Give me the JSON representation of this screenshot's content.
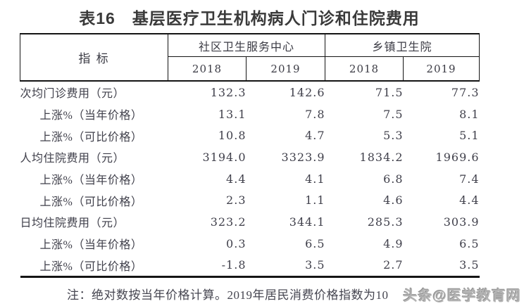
{
  "title": "表16　基层医疗卫生机构病人门诊和住院费用",
  "table": {
    "indicator_header": "指  标",
    "group_headers": [
      {
        "label": "社区卫生服务中心",
        "years": [
          "2018",
          "2019"
        ]
      },
      {
        "label": "乡镇卫生院",
        "years": [
          "2018",
          "2019"
        ]
      }
    ],
    "rows": [
      {
        "label": "次均门诊费用（元）",
        "indent": false,
        "values": [
          "132.3",
          "142.6",
          "71.5",
          "77.3"
        ]
      },
      {
        "label": "上涨%（当年价格）",
        "indent": true,
        "values": [
          "13.1",
          "7.8",
          "7.5",
          "8.1"
        ]
      },
      {
        "label": "上涨%（可比价格）",
        "indent": true,
        "values": [
          "10.8",
          "4.7",
          "5.3",
          "5.1"
        ]
      },
      {
        "label": "人均住院费用（元）",
        "indent": false,
        "values": [
          "3194.0",
          "3323.9",
          "1834.2",
          "1969.6"
        ]
      },
      {
        "label": "上涨%（当年价格）",
        "indent": true,
        "values": [
          "4.4",
          "4.1",
          "6.8",
          "7.4"
        ]
      },
      {
        "label": "上涨%（可比价格）",
        "indent": true,
        "values": [
          "2.3",
          "1.1",
          "4.6",
          "4.4"
        ]
      },
      {
        "label": "日均住院费用（元）",
        "indent": false,
        "values": [
          "323.2",
          "344.1",
          "285.3",
          "303.9"
        ]
      },
      {
        "label": "上涨%（当年价格）",
        "indent": true,
        "values": [
          "0.3",
          "6.5",
          "4.9",
          "6.5"
        ]
      },
      {
        "label": "上涨%（可比价格）",
        "indent": true,
        "values": [
          "-1.8",
          "3.5",
          "2.7",
          "3.5"
        ]
      }
    ]
  },
  "note": "注：绝对数按当年价格计算。2019年居民消费价格指数为10",
  "watermark": "头条@医学教育网",
  "colors": {
    "text": "#3a3a42",
    "border": "#141414",
    "watermark_gray": "#b3b3b3"
  },
  "chart_data": {
    "type": "table",
    "title": "表16　基层医疗卫生机构病人门诊和住院费用",
    "column_groups": [
      "社区卫生服务中心",
      "乡镇卫生院"
    ],
    "columns": [
      "指标",
      "社区卫生服务中心 2018",
      "社区卫生服务中心 2019",
      "乡镇卫生院 2018",
      "乡镇卫生院 2019"
    ],
    "rows": [
      [
        "次均门诊费用（元）",
        132.3,
        142.6,
        71.5,
        77.3
      ],
      [
        "上涨%（当年价格）",
        13.1,
        7.8,
        7.5,
        8.1
      ],
      [
        "上涨%（可比价格）",
        10.8,
        4.7,
        5.3,
        5.1
      ],
      [
        "人均住院费用（元）",
        3194.0,
        3323.9,
        1834.2,
        1969.6
      ],
      [
        "上涨%（当年价格）",
        4.4,
        4.1,
        6.8,
        7.4
      ],
      [
        "上涨%（可比价格）",
        2.3,
        1.1,
        4.6,
        4.4
      ],
      [
        "日均住院费用（元）",
        323.2,
        344.1,
        285.3,
        303.9
      ],
      [
        "上涨%（当年价格）",
        0.3,
        6.5,
        4.9,
        6.5
      ],
      [
        "上涨%（可比价格）",
        -1.8,
        3.5,
        2.7,
        3.5
      ]
    ]
  }
}
